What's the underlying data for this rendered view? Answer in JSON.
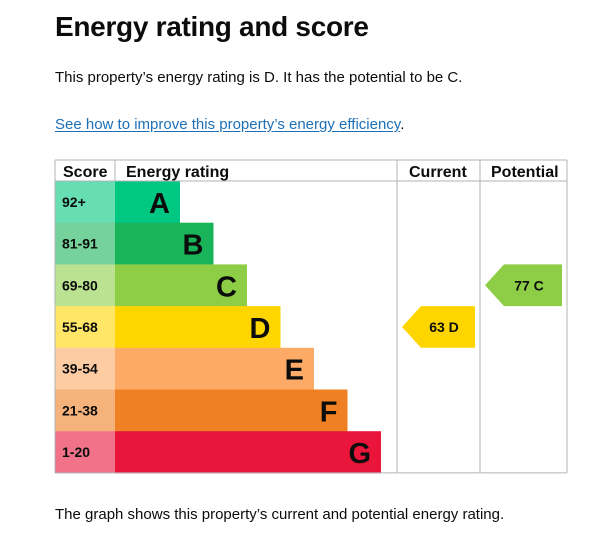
{
  "page": {
    "title": "Energy rating and score",
    "intro": "This property’s energy rating is D. It has the potential to be C.",
    "link_text": "See how to improve this property’s energy efficiency",
    "link_suffix": ".",
    "footer": "The graph shows this property’s current and potential energy rating."
  },
  "chart_data": {
    "type": "table",
    "columns": [
      "Score",
      "Energy rating",
      "Current",
      "Potential"
    ],
    "bands": [
      {
        "letter": "A",
        "score": "92+",
        "color": "#00c781",
        "score_color": "#66ddb3"
      },
      {
        "letter": "B",
        "score": "81-91",
        "color": "#19b459",
        "score_color": "#75d29b"
      },
      {
        "letter": "C",
        "score": "69-80",
        "color": "#8dce46",
        "score_color": "#bbe290"
      },
      {
        "letter": "D",
        "score": "55-68",
        "color": "#ffd500",
        "score_color": "#ffe666"
      },
      {
        "letter": "E",
        "score": "39-54",
        "color": "#fcaa65",
        "score_color": "#fdcca3"
      },
      {
        "letter": "F",
        "score": "21-38",
        "color": "#ef8023",
        "score_color": "#f5b37b"
      },
      {
        "letter": "G",
        "score": "1-20",
        "color": "#e9153b",
        "score_color": "#f27389"
      }
    ],
    "current": {
      "score": 63,
      "letter": "D",
      "label": "63 D"
    },
    "potential": {
      "score": 77,
      "letter": "C",
      "label": "77 C"
    }
  }
}
